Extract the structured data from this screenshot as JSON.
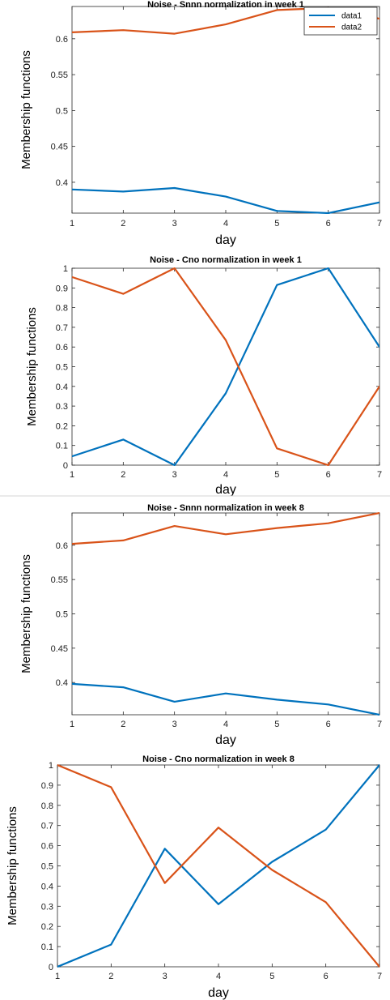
{
  "chart_data": [
    {
      "type": "line",
      "title": "Noise - Snnn normalization in week 1",
      "xlabel": "day",
      "ylabel": "Membership functions",
      "x": [
        1,
        2,
        3,
        4,
        5,
        6,
        7
      ],
      "xlim": [
        1,
        7
      ],
      "ylim": [
        0.357,
        0.645
      ],
      "xticks": [
        "1",
        "2",
        "3",
        "4",
        "5",
        "6",
        "7"
      ],
      "yticks": [
        "0.4",
        "0.45",
        "0.5",
        "0.55",
        "0.6"
      ],
      "legend": true,
      "legend_position": "top-right",
      "series": [
        {
          "name": "data1",
          "color": "#0072BD",
          "values": [
            0.39,
            0.387,
            0.392,
            0.38,
            0.36,
            0.357,
            0.372
          ]
        },
        {
          "name": "data2",
          "color": "#D95319",
          "values": [
            0.609,
            0.612,
            0.607,
            0.62,
            0.64,
            0.643,
            0.628
          ]
        }
      ]
    },
    {
      "type": "line",
      "title": "Noise - Cno normalization in week 1",
      "xlabel": "day",
      "ylabel": "Membership functions",
      "x": [
        1,
        2,
        3,
        4,
        5,
        6,
        7
      ],
      "xlim": [
        1,
        7
      ],
      "ylim": [
        0,
        1
      ],
      "xticks": [
        "1",
        "2",
        "3",
        "4",
        "5",
        "6",
        "7"
      ],
      "yticks": [
        "0",
        "0.1",
        "0.2",
        "0.3",
        "0.4",
        "0.5",
        "0.6",
        "0.7",
        "0.8",
        "0.9",
        "1"
      ],
      "legend": false,
      "series": [
        {
          "color": "#0072BD",
          "values": [
            0.045,
            0.13,
            0.0,
            0.365,
            0.915,
            1.0,
            0.6
          ]
        },
        {
          "color": "#D95319",
          "values": [
            0.955,
            0.87,
            1.0,
            0.635,
            0.085,
            0.0,
            0.4
          ]
        }
      ]
    },
    {
      "type": "line",
      "title": "Noise - Snnn normalization in week 8",
      "xlabel": "day",
      "ylabel": "Membership functions",
      "x": [
        1,
        2,
        3,
        4,
        5,
        6,
        7
      ],
      "xlim": [
        1,
        7
      ],
      "ylim": [
        0.353,
        0.647
      ],
      "xticks": [
        "1",
        "2",
        "3",
        "4",
        "5",
        "6",
        "7"
      ],
      "yticks": [
        "0.4",
        "0.45",
        "0.5",
        "0.55",
        "0.6"
      ],
      "legend": false,
      "series": [
        {
          "color": "#0072BD",
          "values": [
            0.398,
            0.393,
            0.372,
            0.384,
            0.375,
            0.368,
            0.353
          ]
        },
        {
          "color": "#D95319",
          "values": [
            0.602,
            0.607,
            0.628,
            0.616,
            0.625,
            0.632,
            0.647
          ]
        }
      ]
    },
    {
      "type": "line",
      "title": "Noise - Cno normalization in week 8",
      "xlabel": "day",
      "ylabel": "Membership functions",
      "x": [
        1,
        2,
        3,
        4,
        5,
        6,
        7
      ],
      "xlim": [
        1,
        7
      ],
      "ylim": [
        0,
        1
      ],
      "xticks": [
        "1",
        "2",
        "3",
        "4",
        "5",
        "6",
        "7"
      ],
      "yticks": [
        "0",
        "0.1",
        "0.2",
        "0.3",
        "0.4",
        "0.5",
        "0.6",
        "0.7",
        "0.8",
        "0.9",
        "1"
      ],
      "legend": false,
      "series": [
        {
          "color": "#0072BD",
          "values": [
            0.0,
            0.11,
            0.585,
            0.31,
            0.52,
            0.68,
            1.0
          ]
        },
        {
          "color": "#D95319",
          "values": [
            1.0,
            0.89,
            0.415,
            0.69,
            0.48,
            0.32,
            0.0
          ]
        }
      ]
    }
  ]
}
